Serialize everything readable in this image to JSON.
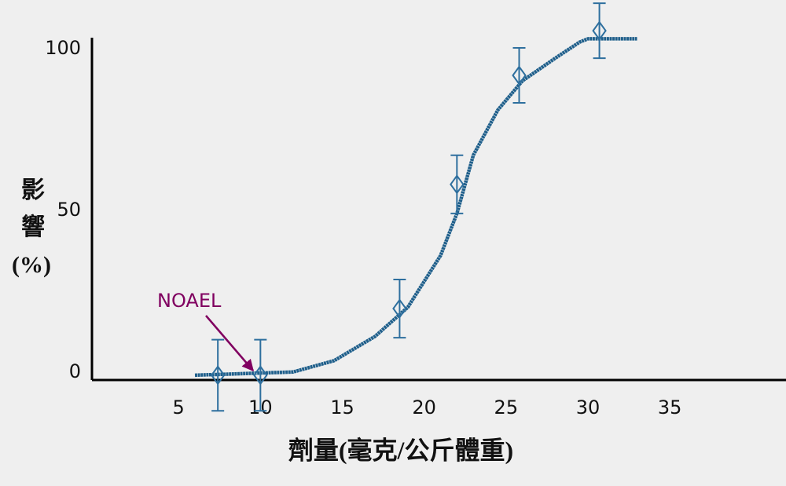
{
  "chart_data": {
    "type": "line",
    "xlabel": "劑量(毫克/公斤體重)",
    "ylabel": [
      "影",
      "響",
      "(%)"
    ],
    "annotation": "NOAEL",
    "xlim": [
      0,
      42
    ],
    "xticks": [
      5,
      10,
      15,
      20,
      25,
      30,
      35
    ],
    "ylim": [
      -1,
      116
    ],
    "yticks": [
      0,
      50,
      100
    ],
    "series": [
      {
        "color": "#1f5f8b",
        "x": [
          6,
          12,
          14.5,
          17,
          19,
          21,
          22,
          23,
          24.5,
          26,
          28,
          29.5,
          30,
          33
        ],
        "values": [
          0,
          1,
          4.5,
          12,
          21,
          37,
          50,
          68,
          82,
          91,
          98,
          103,
          104,
          104
        ]
      },
      {
        "color": "#2e6f9e",
        "x": [
          7.4,
          10,
          18.5,
          22,
          25.8,
          30.7
        ],
        "values": [
          0,
          0,
          20.6,
          59,
          92.7,
          106.5
        ],
        "errors": [
          11,
          11,
          9,
          9,
          8.5,
          8.5
        ]
      }
    ]
  }
}
